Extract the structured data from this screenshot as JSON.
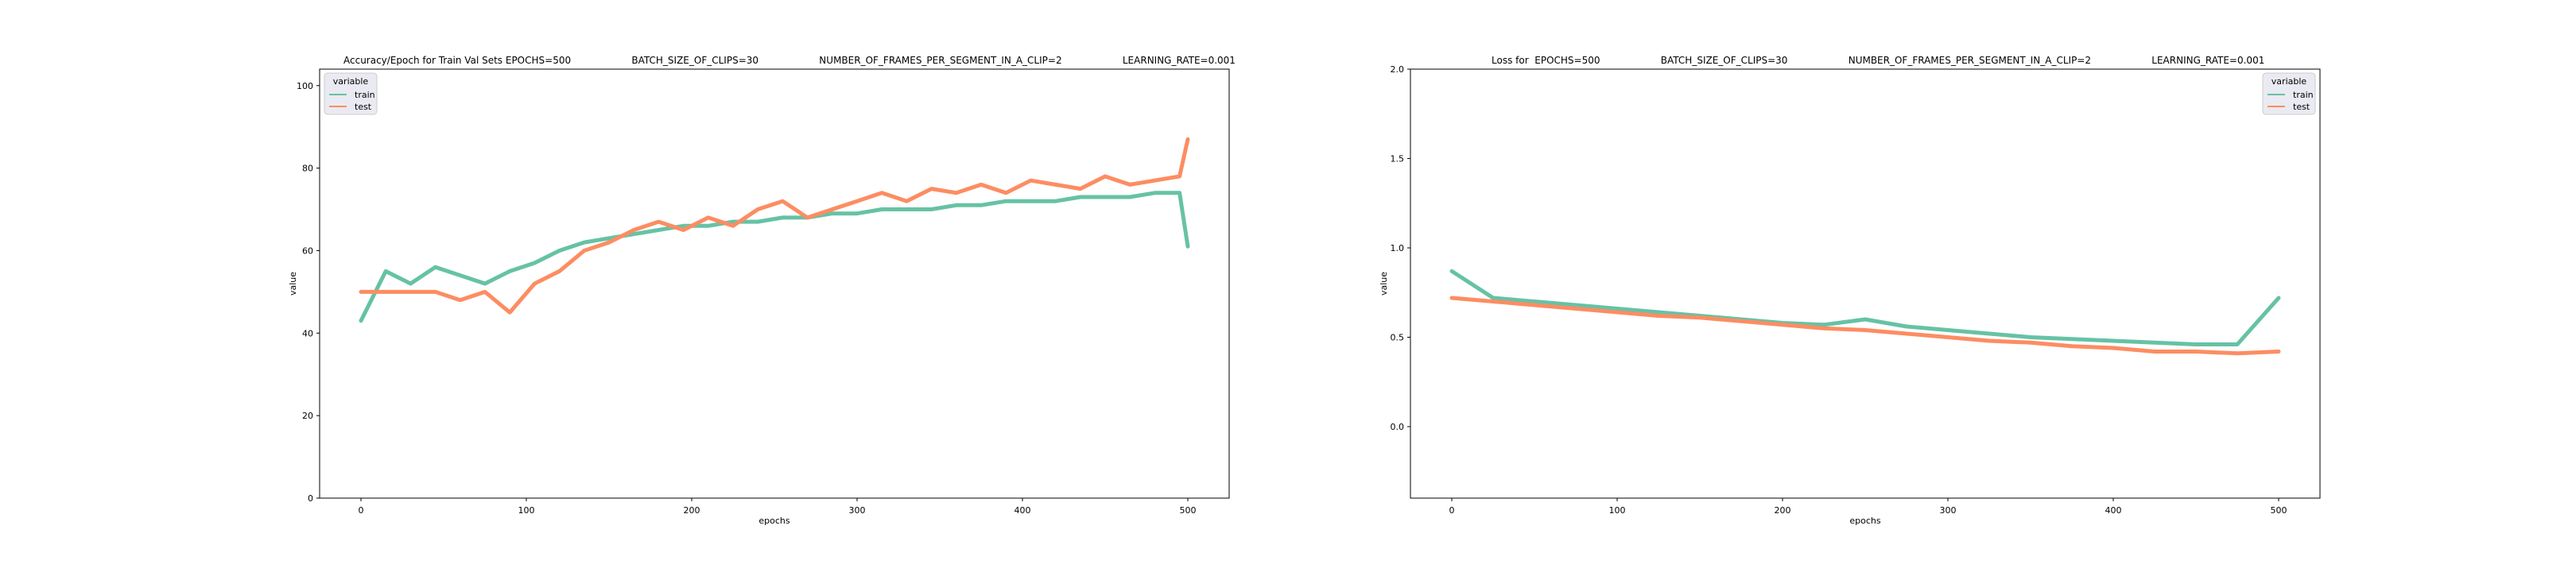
{
  "chart_data": [
    {
      "type": "line",
      "title": "Accuracy/Epoch for Train Val Sets EPOCHS=500                    BATCH_SIZE_OF_CLIPS=30                    NUMBER_OF_FRAMES_PER_SEGMENT_IN_A_CLIP=2                    LEARNING_RATE=0.001",
      "xlabel": "epochs",
      "ylabel": "value",
      "xlim": [
        -25,
        525
      ],
      "ylim": [
        0,
        104
      ],
      "xticks": [
        0,
        100,
        200,
        300,
        400,
        500
      ],
      "yticks": [
        0,
        20,
        40,
        60,
        80,
        100
      ],
      "legend": {
        "title": "variable",
        "position": "top-left"
      },
      "series": [
        {
          "name": "train",
          "color": "#66c2a5",
          "x": [
            0,
            15,
            30,
            45,
            60,
            75,
            90,
            105,
            120,
            135,
            150,
            165,
            180,
            195,
            210,
            225,
            240,
            255,
            270,
            285,
            300,
            315,
            330,
            345,
            360,
            375,
            390,
            405,
            420,
            435,
            450,
            465,
            480,
            495,
            500
          ],
          "y": [
            43,
            55,
            52,
            56,
            54,
            52,
            55,
            57,
            60,
            62,
            63,
            64,
            65,
            66,
            66,
            67,
            67,
            68,
            68,
            69,
            69,
            70,
            70,
            70,
            71,
            71,
            72,
            72,
            72,
            73,
            73,
            73,
            74,
            74,
            61
          ]
        },
        {
          "name": "test",
          "color": "#fc8d62",
          "x": [
            0,
            15,
            30,
            45,
            60,
            75,
            90,
            105,
            120,
            135,
            150,
            165,
            180,
            195,
            210,
            225,
            240,
            255,
            270,
            285,
            300,
            315,
            330,
            345,
            360,
            375,
            390,
            405,
            420,
            435,
            450,
            465,
            480,
            495,
            500
          ],
          "y": [
            50,
            50,
            50,
            50,
            48,
            50,
            45,
            52,
            55,
            60,
            62,
            65,
            67,
            65,
            68,
            66,
            70,
            72,
            68,
            70,
            72,
            74,
            72,
            75,
            74,
            76,
            74,
            77,
            76,
            75,
            78,
            76,
            77,
            78,
            87
          ]
        }
      ]
    },
    {
      "type": "line",
      "title": "Loss for  EPOCHS=500                    BATCH_SIZE_OF_CLIPS=30                    NUMBER_OF_FRAMES_PER_SEGMENT_IN_A_CLIP=2                    LEARNING_RATE=0.001",
      "xlabel": "epochs",
      "ylabel": "value",
      "xlim": [
        -25,
        525
      ],
      "ylim": [
        -0.4,
        2.0
      ],
      "xticks": [
        0,
        100,
        200,
        300,
        400,
        500
      ],
      "yticks": [
        0.0,
        0.5,
        1.0,
        1.5,
        2.0
      ],
      "yticklabels": [
        "0.0",
        "0.5",
        "1.0",
        "1.5",
        "2.0"
      ],
      "legend": {
        "title": "variable",
        "position": "top-right"
      },
      "series": [
        {
          "name": "train",
          "color": "#66c2a5",
          "x": [
            0,
            25,
            50,
            75,
            100,
            125,
            150,
            175,
            200,
            225,
            250,
            275,
            300,
            325,
            350,
            375,
            400,
            425,
            450,
            475,
            500
          ],
          "y": [
            0.87,
            0.72,
            0.7,
            0.68,
            0.66,
            0.64,
            0.62,
            0.6,
            0.58,
            0.57,
            0.6,
            0.56,
            0.54,
            0.52,
            0.5,
            0.49,
            0.48,
            0.47,
            0.46,
            0.46,
            0.72
          ]
        },
        {
          "name": "test",
          "color": "#fc8d62",
          "x": [
            0,
            25,
            50,
            75,
            100,
            125,
            150,
            175,
            200,
            225,
            250,
            275,
            300,
            325,
            350,
            375,
            400,
            425,
            450,
            475,
            500
          ],
          "y": [
            0.72,
            0.7,
            0.68,
            0.66,
            0.64,
            0.62,
            0.61,
            0.59,
            0.57,
            0.55,
            0.54,
            0.52,
            0.5,
            0.48,
            0.47,
            0.45,
            0.44,
            0.42,
            0.42,
            0.41,
            0.42
          ]
        }
      ]
    }
  ]
}
